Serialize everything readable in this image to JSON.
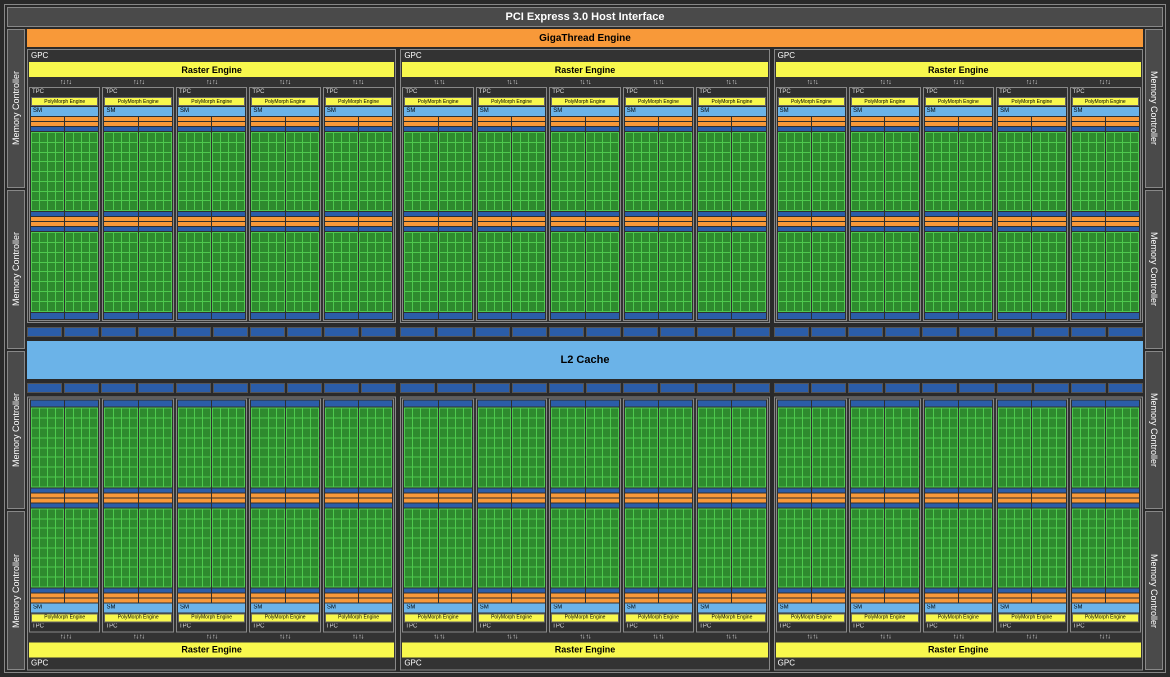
{
  "pcie": "PCI Express 3.0 Host Interface",
  "gigathread": "GigaThread Engine",
  "l2cache": "L2 Cache",
  "memctrl": "Memory Controller",
  "gpc": "GPC",
  "raster": "Raster Engine",
  "tpc": "TPC",
  "polymorph": "PolyMorph Engine",
  "sm": "SM",
  "layout": {
    "gpc_per_row": 3,
    "tpc_per_gpc": 5,
    "sm_halves": 2,
    "core_cols": 4,
    "core_rows": 8,
    "mem_controllers_per_side": 4,
    "cache_strip_segments": 10
  },
  "colors": {
    "background": "#2a2a2a",
    "border": "#888888",
    "header_bg": "#4a4a4a",
    "gigathread": "#f89939",
    "raster_yellow": "#f8f84d",
    "sm_lightblue": "#6bb3e8",
    "core_green": "#4ec94e",
    "core_dark_green": "#2e8b2e",
    "orange": "#f89939",
    "darkblue": "#2b5da8",
    "text_light": "#ffffff",
    "text_dark": "#000000"
  }
}
